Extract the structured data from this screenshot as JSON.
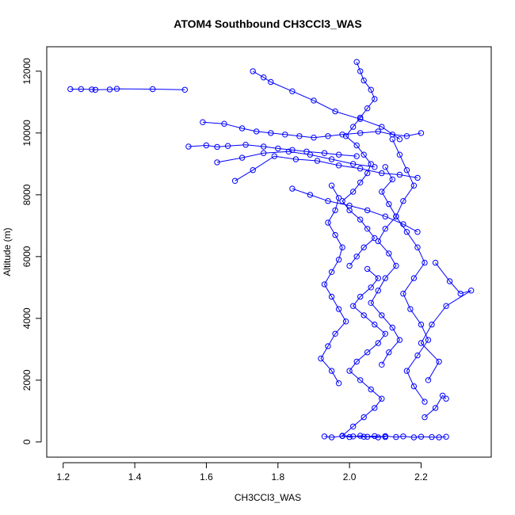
{
  "chart_data": {
    "type": "scatter",
    "title": "ATOM4 Southbound CH3CCl3_WAS",
    "xlabel": "CH3CCl3_WAS",
    "ylabel": "Altitude (m)",
    "xlim": [
      1.2,
      2.35
    ],
    "ylim": [
      0,
      12300
    ],
    "x_ticks": [
      1.2,
      1.4,
      1.6,
      1.8,
      2.0,
      2.2
    ],
    "x_tick_labels": [
      "1.2",
      "1.4",
      "1.6",
      "1.8",
      "2.0",
      "2.2"
    ],
    "y_ticks": [
      0,
      2000,
      4000,
      6000,
      8000,
      10000,
      12000
    ],
    "y_tick_labels": [
      "0",
      "2000",
      "4000",
      "6000",
      "8000",
      "10000",
      "12000"
    ],
    "grid": false,
    "marker": "open-circle",
    "color": "#0000ff",
    "series": [
      {
        "x": [
          1.22,
          1.25,
          1.28,
          1.29,
          1.33,
          1.35,
          1.45,
          1.54
        ],
        "y": [
          11420,
          11420,
          11410,
          11400,
          11410,
          11430,
          11420,
          11400
        ]
      },
      {
        "x": [
          1.55,
          1.6,
          1.63,
          1.66,
          1.71,
          1.76,
          1.8,
          1.84,
          1.88,
          1.93,
          1.97,
          2.02
        ],
        "y": [
          9560,
          9600,
          9550,
          9580,
          9620,
          9560,
          9500,
          9450,
          9400,
          9350,
          9300,
          9250
        ]
      },
      {
        "x": [
          1.59,
          1.65,
          1.7,
          1.74,
          1.78,
          1.82,
          1.86,
          1.9,
          1.94,
          1.98,
          2.03,
          2.08,
          2.12,
          2.16,
          2.2
        ],
        "y": [
          10350,
          10300,
          10150,
          10050,
          10000,
          9950,
          9900,
          9850,
          9900,
          9950,
          10000,
          10050,
          9950,
          9900,
          10000
        ]
      },
      {
        "x": [
          1.68,
          1.73,
          1.79,
          1.85,
          1.91,
          1.97,
          2.03,
          2.09,
          2.14,
          2.19
        ],
        "y": [
          8450,
          8800,
          9250,
          9150,
          9100,
          8950,
          8850,
          8700,
          8650,
          8550
        ]
      },
      {
        "x": [
          1.63,
          1.7,
          1.76,
          1.83,
          1.89,
          1.95,
          2.01,
          2.07
        ],
        "y": [
          9050,
          9200,
          9350,
          9400,
          9300,
          9150,
          9000,
          8900
        ]
      },
      {
        "x": [
          1.73,
          1.76,
          1.78,
          1.84,
          1.9,
          1.96,
          2.03,
          2.09,
          2.14
        ],
        "y": [
          12000,
          11800,
          11650,
          11350,
          11050,
          10700,
          10450,
          10200,
          9800
        ]
      },
      {
        "x": [
          1.84,
          1.89,
          1.94,
          2.0,
          2.05,
          2.1,
          2.15,
          2.19
        ],
        "y": [
          8200,
          8000,
          7800,
          7650,
          7500,
          7300,
          7050,
          6800
        ]
      },
      {
        "x": [
          2.02,
          2.03,
          2.04,
          2.06,
          2.07,
          2.05,
          2.03,
          2.01,
          1.99,
          2.02,
          2.04,
          2.06,
          2.05,
          2.03,
          2.01,
          1.98,
          2.0,
          2.03,
          2.05,
          2.07,
          2.04,
          2.02,
          2.0
        ],
        "y": [
          12300,
          12000,
          11700,
          11400,
          11100,
          10800,
          10500,
          10200,
          9900,
          9600,
          9300,
          9000,
          8700,
          8400,
          8100,
          7800,
          7500,
          7200,
          6900,
          6600,
          6300,
          6000,
          5700
        ]
      },
      {
        "x": [
          2.05,
          2.08,
          2.06,
          2.03,
          2.01,
          2.04,
          2.07,
          2.1,
          2.08,
          2.05,
          2.02,
          2.0,
          2.03,
          2.06,
          2.09,
          2.07,
          2.04,
          2.01,
          1.98,
          2.01,
          2.04,
          2.07,
          2.1
        ],
        "y": [
          5600,
          5300,
          5000,
          4700,
          4400,
          4100,
          3800,
          3500,
          3200,
          2900,
          2600,
          2300,
          2000,
          1700,
          1400,
          1100,
          800,
          500,
          200,
          180,
          170,
          190,
          160
        ]
      },
      {
        "x": [
          1.95,
          1.97,
          1.96,
          1.94,
          1.96,
          1.98,
          1.97,
          1.95,
          1.93,
          1.95,
          1.97,
          1.99,
          1.96,
          1.94,
          1.92,
          1.95,
          1.97
        ],
        "y": [
          8300,
          7900,
          7500,
          7100,
          6700,
          6300,
          5900,
          5500,
          5100,
          4700,
          4300,
          3900,
          3500,
          3100,
          2700,
          2300,
          1900
        ]
      },
      {
        "x": [
          2.12,
          2.14,
          2.16,
          2.18,
          2.15,
          2.13,
          2.16,
          2.19,
          2.21,
          2.18,
          2.15,
          2.17,
          2.2,
          2.22,
          2.19,
          2.16,
          2.18,
          2.21
        ],
        "y": [
          9800,
          9300,
          8800,
          8300,
          7800,
          7300,
          6800,
          6300,
          5800,
          5300,
          4800,
          4300,
          3800,
          3300,
          2800,
          2300,
          1800,
          1300
        ]
      },
      {
        "x": [
          2.24,
          2.28,
          2.31,
          2.34,
          2.27,
          2.23,
          2.2,
          2.25,
          2.22
        ],
        "y": [
          5800,
          5200,
          4800,
          4900,
          4400,
          3800,
          3200,
          2600,
          2000
        ]
      },
      {
        "x": [
          2.1,
          2.12,
          2.09,
          2.11,
          2.13,
          2.1,
          2.08,
          2.11,
          2.13,
          2.1,
          2.08,
          2.06,
          2.09,
          2.12,
          2.14,
          2.11,
          2.09
        ],
        "y": [
          8900,
          8500,
          8100,
          7700,
          7300,
          6900,
          6500,
          6100,
          5700,
          5300,
          4900,
          4500,
          4100,
          3700,
          3300,
          2900,
          2500
        ]
      },
      {
        "x": [
          1.93,
          1.95,
          1.98,
          2.0,
          2.03,
          2.05,
          2.08,
          2.1,
          2.13,
          2.15,
          2.18,
          2.2,
          2.23,
          2.25,
          2.27
        ],
        "y": [
          180,
          150,
          190,
          160,
          200,
          170,
          150,
          190,
          160,
          180,
          150,
          170,
          160,
          150,
          170
        ]
      },
      {
        "x": [
          2.21,
          2.24,
          2.26,
          2.27
        ],
        "y": [
          800,
          1100,
          1500,
          1400
        ]
      }
    ]
  }
}
